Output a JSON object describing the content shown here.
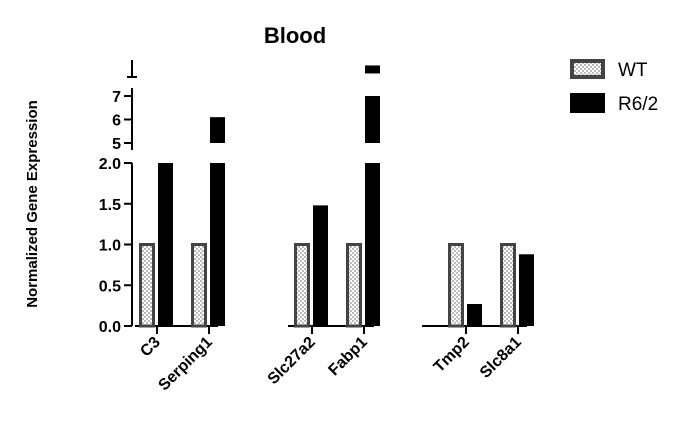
{
  "chart_data": {
    "type": "bar",
    "title": "Blood",
    "xlabel": "",
    "ylabel": "Normalized Gene Expression",
    "categories": [
      "C3",
      "Serping1",
      "Slc27a2",
      "Fabp1",
      "Tmp2",
      "Slc8a1"
    ],
    "groups": [
      [
        "C3",
        "Serping1"
      ],
      [
        "Slc27a2",
        "Fabp1"
      ],
      [
        "Tmp2",
        "Slc8a1"
      ]
    ],
    "series": [
      {
        "name": "WT",
        "color": "#ffffff",
        "pattern": "dotted",
        "values": [
          1.0,
          1.0,
          1.0,
          1.0,
          1.0,
          1.0
        ]
      },
      {
        "name": "R6/2",
        "color": "#000000",
        "values": [
          2.0,
          6.1,
          1.48,
          8.3,
          0.27,
          0.88
        ]
      }
    ],
    "clipped_bars": [
      "C3"
    ],
    "y_axis_segments": [
      {
        "range": [
          0,
          2.0
        ],
        "ticks": [
          "0.0",
          "0.5",
          "1.0",
          "1.5",
          "2.0"
        ]
      },
      {
        "range": [
          5,
          7
        ],
        "ticks": [
          "5",
          "6",
          "7"
        ]
      },
      {
        "range": [
          7,
          9
        ],
        "ticks": []
      }
    ],
    "legend_position": "top-right",
    "grid": false
  }
}
